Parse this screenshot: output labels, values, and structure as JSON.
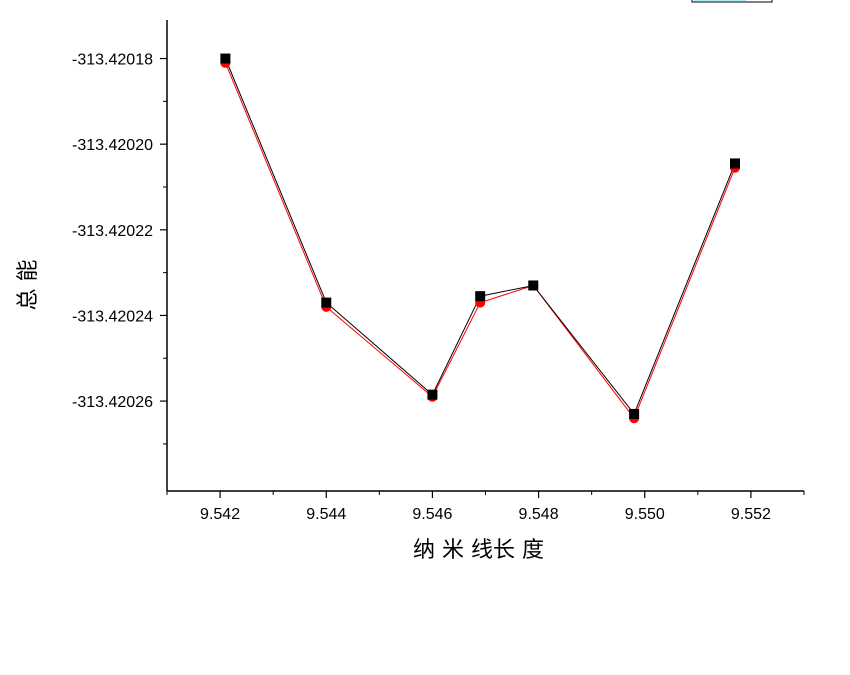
{
  "chart_data": {
    "type": "line",
    "title": "",
    "xlabel": "纳 米 线长 度",
    "ylabel": "总 能",
    "xlim": [
      9.541,
      9.553
    ],
    "ylim": [
      -313.420281,
      -313.420171
    ],
    "x_ticks": [
      "9.542",
      "9.544",
      "9.546",
      "9.548",
      "9.550",
      "9.552"
    ],
    "y_ticks": [
      "-313.42018",
      "-313.42020",
      "-313.42022",
      "-313.42024",
      "-313.42026"
    ],
    "grid": false,
    "legend": "top-right",
    "series": [
      {
        "color": "#000000",
        "marker": "square",
        "x": [
          9.5421,
          9.544,
          9.546,
          9.5469,
          9.5479,
          9.5498,
          9.5517
        ],
        "y": [
          -313.42018,
          -313.420237,
          -313.4202585,
          -313.4202355,
          -313.420233,
          -313.420263,
          -313.4202045
        ]
      },
      {
        "color": "#ff0000",
        "marker": "circle",
        "x": [
          9.5421,
          9.544,
          9.546,
          9.5469,
          9.5479,
          9.5498,
          9.5517
        ],
        "y": [
          -313.420181,
          -313.420238,
          -313.420259,
          -313.420237,
          -313.420233,
          -313.420264,
          -313.4202055
        ]
      }
    ]
  }
}
